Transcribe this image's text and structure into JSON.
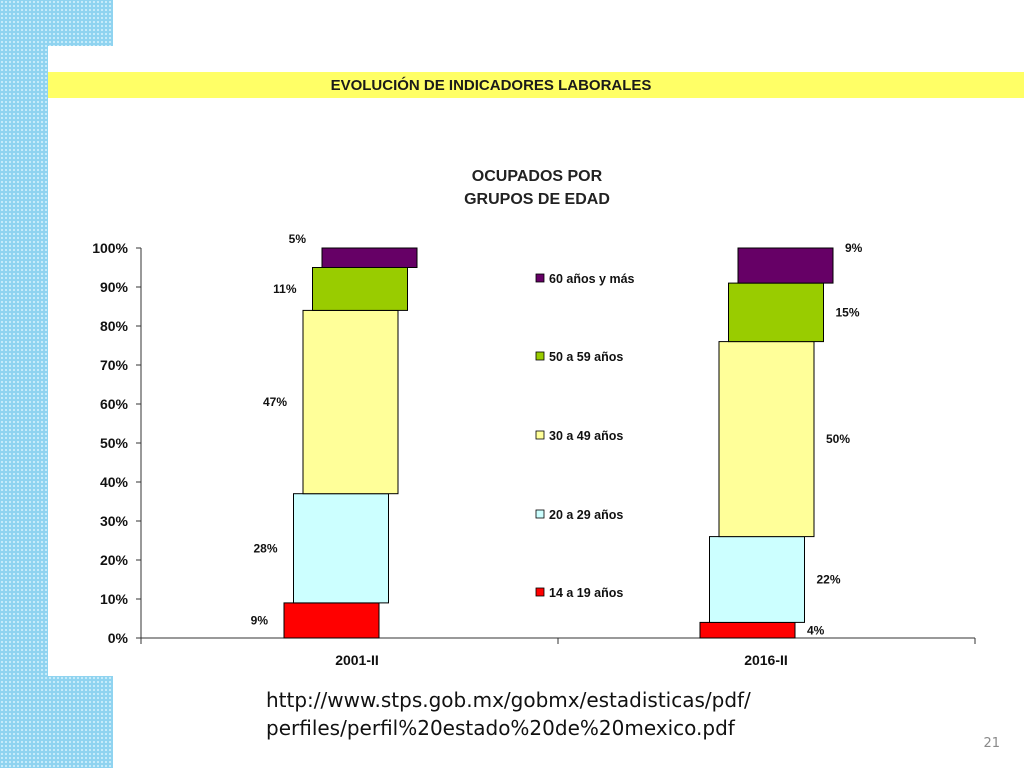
{
  "header": {
    "banner_title": "EVOLUCIÓN DE INDICADORES LABORALES"
  },
  "colors": {
    "banner": "#ffff66",
    "side_pattern": "#8fd3f0",
    "series": [
      "#ff0000",
      "#ccffff",
      "#ffff99",
      "#99cc00",
      "#660066"
    ]
  },
  "chart_data": {
    "type": "bar",
    "stacked": true,
    "title_lines": [
      "OCUPADOS POR",
      "GRUPOS DE EDAD"
    ],
    "categories": [
      "2001-II",
      "2016-II"
    ],
    "series": [
      {
        "name": "14 a 19 años",
        "values": [
          9,
          4
        ],
        "labels": [
          "9%",
          "4%"
        ]
      },
      {
        "name": "20 a 29 años",
        "values": [
          28,
          22
        ],
        "labels": [
          "28%",
          "22%"
        ]
      },
      {
        "name": "30 a 49 años",
        "values": [
          47,
          50
        ],
        "labels": [
          "47%",
          "50%"
        ]
      },
      {
        "name": "50 a 59 años",
        "values": [
          11,
          15
        ],
        "labels": [
          "11%",
          "15%"
        ]
      },
      {
        "name": "60 años y más",
        "values": [
          5,
          9
        ],
        "labels": [
          "5%",
          "9%"
        ]
      }
    ],
    "ylim": [
      0,
      100
    ],
    "yticks": [
      "0%",
      "10%",
      "20%",
      "30%",
      "40%",
      "50%",
      "60%",
      "70%",
      "80%",
      "90%",
      "100%"
    ],
    "legend_position": "center",
    "legend_order": [
      "60 años y más",
      "50 a 59 años",
      "30 a 49 años",
      "20 a 29 años",
      "14 a 19 años"
    ],
    "grid": false
  },
  "footer": {
    "url_line1": "http://www.stps.gob.mx/gobmx/estadisticas/pdf/",
    "url_line2": "perfiles/perfil%20estado%20de%20mexico.pdf",
    "page_number": "21"
  }
}
